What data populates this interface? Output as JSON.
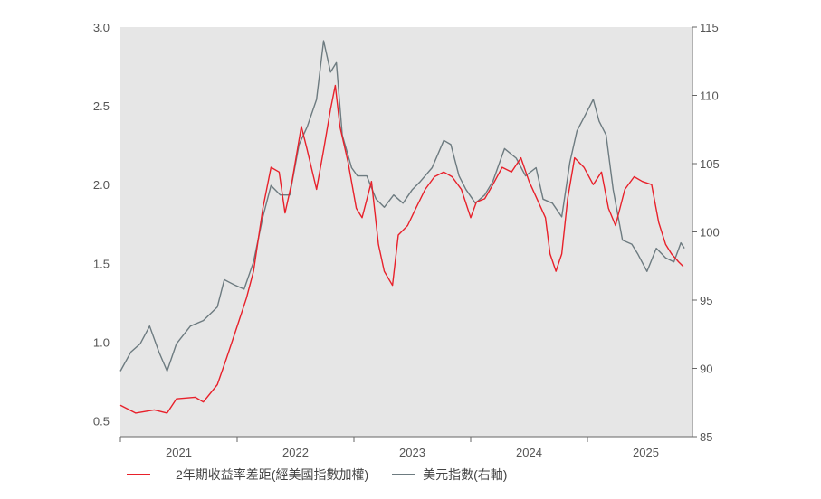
{
  "chart_data": {
    "type": "line",
    "title": "",
    "xlabel": "",
    "x_ticks": [
      "2021",
      "2022",
      "2023",
      "2024",
      "2025"
    ],
    "xlim": [
      2021.0,
      2025.9
    ],
    "left_axis": {
      "ylim": [
        0.4,
        3.0
      ],
      "ticks": [
        "0.5",
        "1.0",
        "1.5",
        "2.0",
        "2.5",
        "3.0"
      ],
      "tick_values": [
        0.5,
        1.0,
        1.5,
        2.0,
        2.5,
        3.0
      ]
    },
    "right_axis": {
      "ylim": [
        85,
        115
      ],
      "ticks": [
        "85",
        "90",
        "95",
        "100",
        "105",
        "110",
        "115"
      ],
      "tick_values": [
        85,
        90,
        95,
        100,
        105,
        110,
        115
      ]
    },
    "grid": false,
    "legend_position": "bottom",
    "series": [
      {
        "name": "2年期收益率差距(經美國指數加權)",
        "axis": "left",
        "color": "#e8202a",
        "x": [
          2021.0,
          2021.13,
          2021.29,
          2021.4,
          2021.48,
          2021.64,
          2021.71,
          2021.83,
          2021.91,
          2022.0,
          2022.08,
          2022.14,
          2022.22,
          2022.29,
          2022.36,
          2022.41,
          2022.47,
          2022.55,
          2022.6,
          2022.68,
          2022.74,
          2022.8,
          2022.84,
          2022.88,
          2022.95,
          2023.02,
          2023.07,
          2023.15,
          2023.21,
          2023.26,
          2023.33,
          2023.38,
          2023.46,
          2023.53,
          2023.61,
          2023.69,
          2023.77,
          2023.84,
          2023.92,
          2024.0,
          2024.05,
          2024.12,
          2024.19,
          2024.27,
          2024.35,
          2024.43,
          2024.5,
          2024.58,
          2024.64,
          2024.68,
          2024.73,
          2024.78,
          2024.83,
          2024.89,
          2024.97,
          2025.05,
          2025.12,
          2025.18,
          2025.24,
          2025.32,
          2025.4,
          2025.47,
          2025.55,
          2025.61,
          2025.67,
          2025.72,
          2025.78,
          2025.82
        ],
        "values": [
          0.6,
          0.55,
          0.57,
          0.55,
          0.64,
          0.65,
          0.62,
          0.73,
          0.9,
          1.1,
          1.28,
          1.45,
          1.85,
          2.11,
          2.08,
          1.82,
          2.02,
          2.37,
          2.22,
          1.97,
          2.22,
          2.48,
          2.63,
          2.37,
          2.14,
          1.85,
          1.79,
          2.02,
          1.62,
          1.45,
          1.36,
          1.68,
          1.74,
          1.85,
          1.97,
          2.05,
          2.08,
          2.05,
          1.97,
          1.79,
          1.89,
          1.91,
          2.0,
          2.11,
          2.08,
          2.17,
          2.02,
          1.89,
          1.79,
          1.56,
          1.45,
          1.56,
          1.91,
          2.17,
          2.11,
          2.0,
          2.08,
          1.85,
          1.74,
          1.97,
          2.05,
          2.02,
          2.0,
          1.76,
          1.62,
          1.56,
          1.51,
          1.48
        ]
      },
      {
        "name": "美元指數(右軸)",
        "axis": "right",
        "color": "#6d7b80",
        "x": [
          2021.0,
          2021.09,
          2021.17,
          2021.25,
          2021.33,
          2021.4,
          2021.48,
          2021.6,
          2021.71,
          2021.83,
          2021.89,
          2021.98,
          2022.06,
          2022.14,
          2022.22,
          2022.29,
          2022.37,
          2022.45,
          2022.53,
          2022.6,
          2022.68,
          2022.74,
          2022.8,
          2022.85,
          2022.9,
          2022.98,
          2023.03,
          2023.11,
          2023.19,
          2023.26,
          2023.34,
          2023.42,
          2023.5,
          2023.57,
          2023.67,
          2023.77,
          2023.83,
          2023.9,
          2023.96,
          2024.04,
          2024.12,
          2024.19,
          2024.29,
          2024.39,
          2024.47,
          2024.56,
          2024.62,
          2024.7,
          2024.78,
          2024.85,
          2024.91,
          2024.99,
          2025.05,
          2025.1,
          2025.16,
          2025.22,
          2025.3,
          2025.38,
          2025.43,
          2025.51,
          2025.59,
          2025.67,
          2025.74,
          2025.8,
          2025.83
        ],
        "values": [
          89.8,
          91.2,
          91.8,
          93.1,
          91.2,
          89.8,
          91.8,
          93.1,
          93.5,
          94.5,
          96.5,
          96.1,
          95.8,
          97.8,
          101.1,
          103.4,
          102.7,
          102.7,
          106.4,
          107.7,
          109.7,
          114.0,
          111.7,
          112.4,
          107.1,
          104.7,
          104.1,
          104.1,
          102.4,
          101.8,
          102.7,
          102.1,
          103.1,
          103.7,
          104.7,
          106.7,
          106.4,
          104.1,
          103.1,
          102.1,
          102.7,
          103.7,
          106.1,
          105.4,
          104.1,
          104.7,
          102.4,
          102.1,
          101.1,
          105.1,
          107.4,
          108.7,
          109.7,
          108.1,
          107.1,
          103.1,
          99.4,
          99.1,
          98.4,
          97.1,
          98.8,
          98.1,
          97.8,
          99.2,
          98.8
        ]
      }
    ]
  },
  "legend": {
    "red_label": "2年期收益率差距(經美國指數加權)",
    "gray_label": "美元指數(右軸)"
  }
}
